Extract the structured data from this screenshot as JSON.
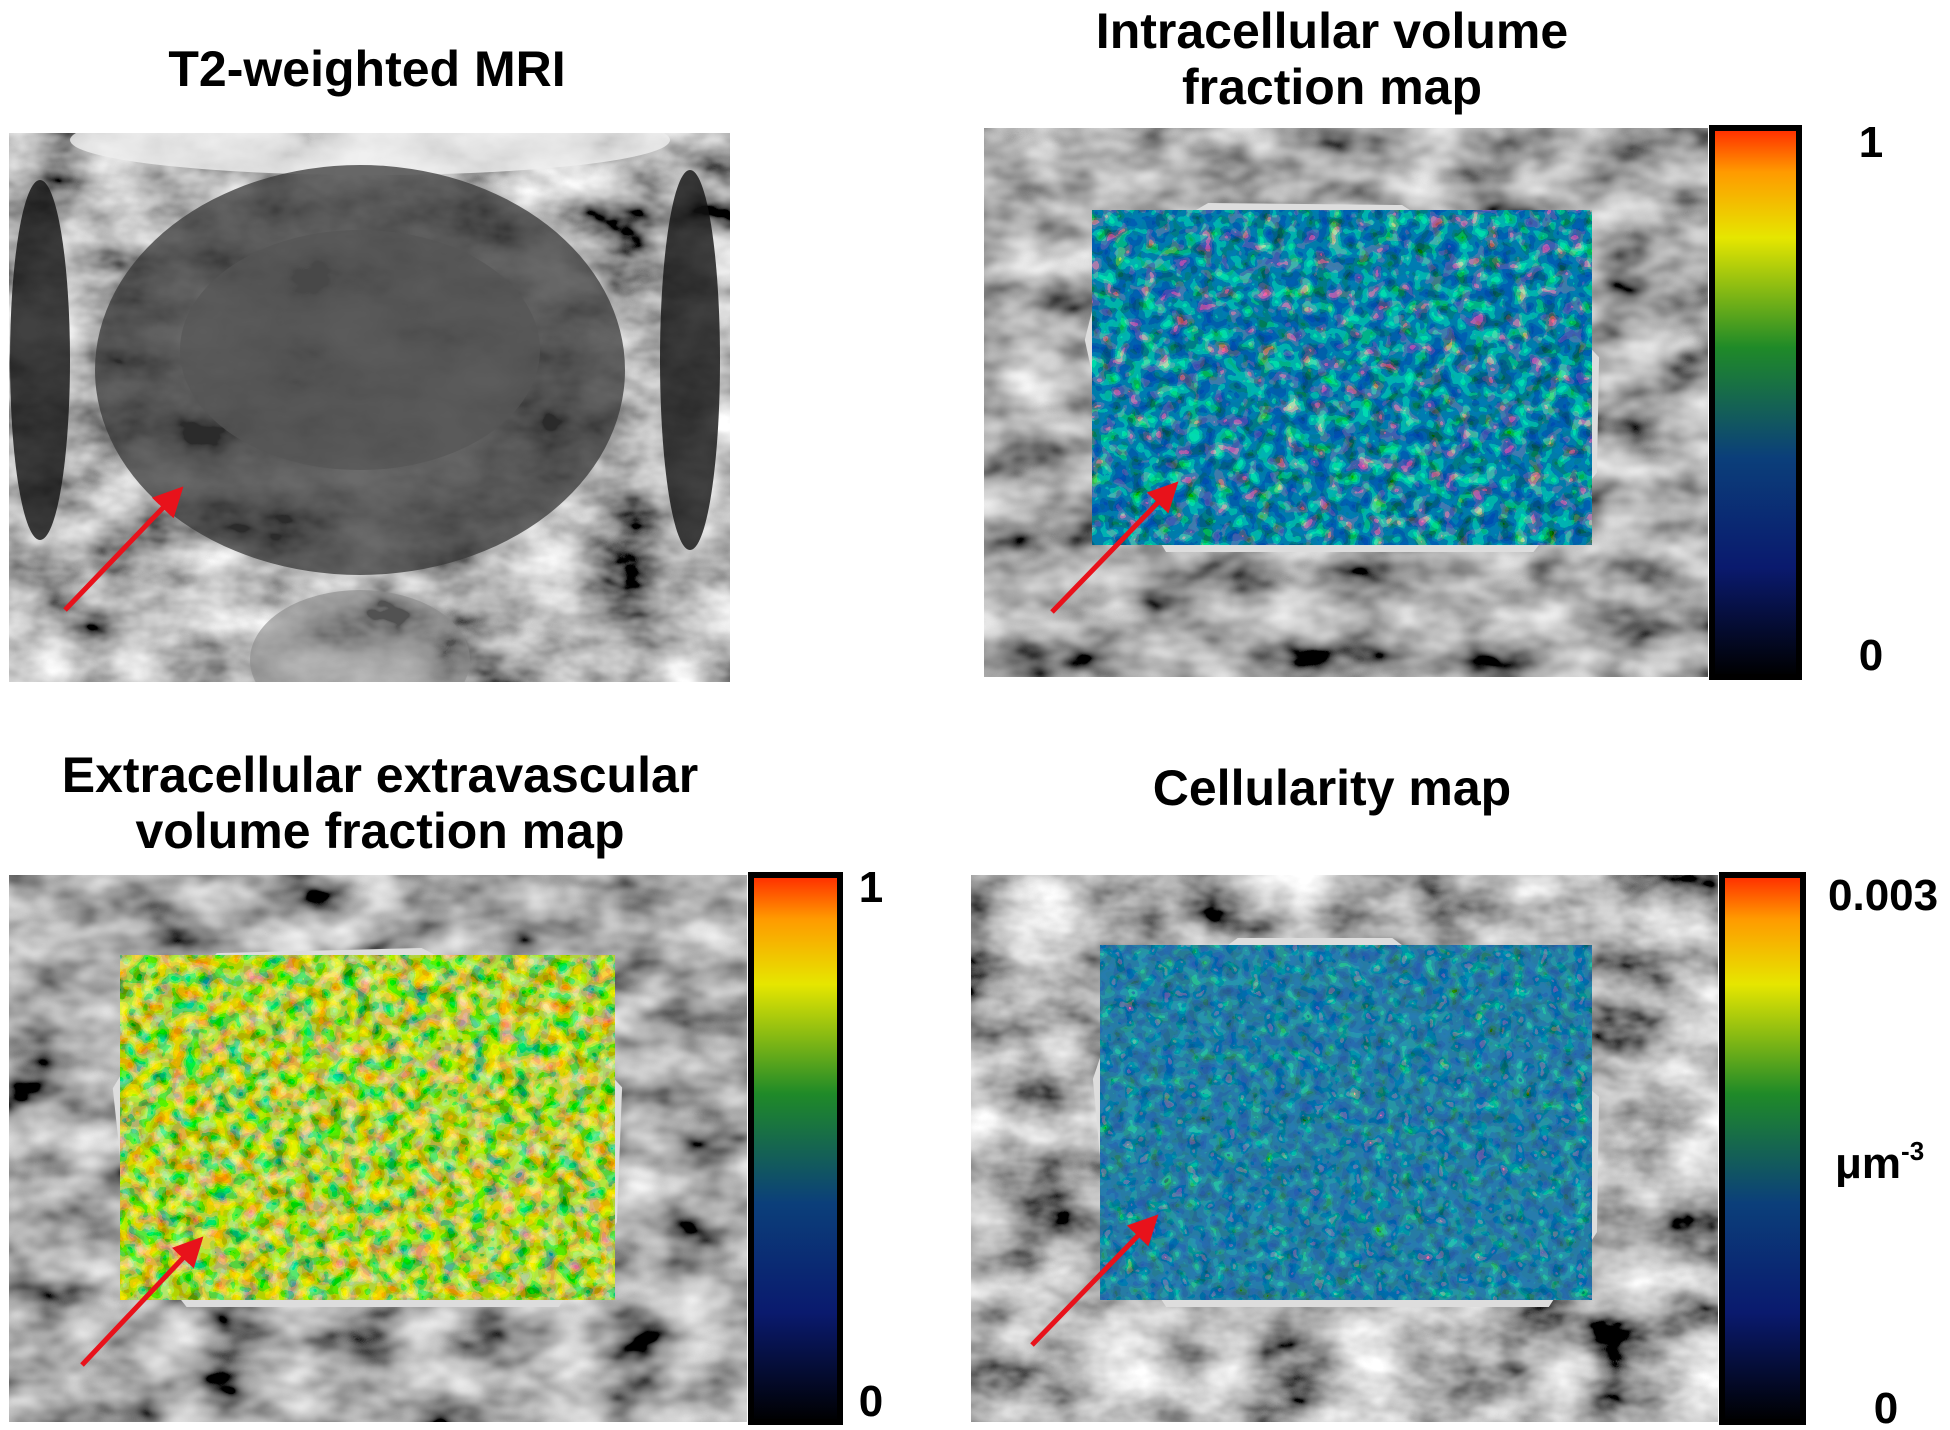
{
  "panels": [
    {
      "title": [
        "T2-weighted MRI"
      ]
    },
    {
      "title": [
        "Intracellular volume",
        "fraction map"
      ],
      "colorbar": {
        "max": 1,
        "min": 0
      }
    },
    {
      "title": [
        "Extracellular extravascular",
        "volume fraction map"
      ],
      "colorbar": {
        "max": 1,
        "min": 0
      }
    },
    {
      "title": [
        "Cellularity map"
      ],
      "colorbar": {
        "max": 0.003,
        "min": 0,
        "unit": {
          "base": "μm",
          "exp": "-3"
        }
      }
    }
  ]
}
